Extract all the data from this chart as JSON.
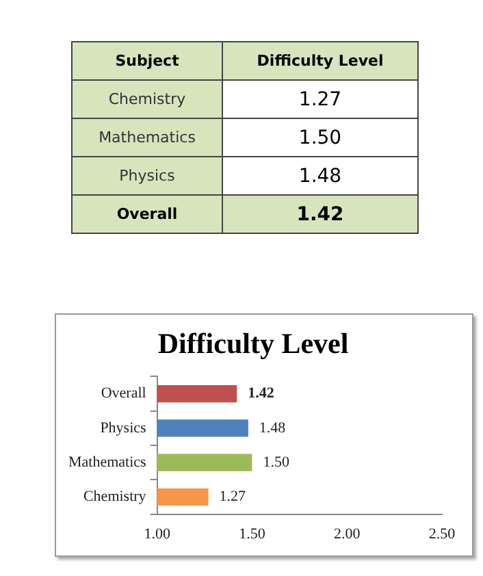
{
  "chart_data": {
    "type": "bar",
    "orientation": "horizontal",
    "title": "Difficulty Level",
    "categories": [
      "Overall",
      "Physics",
      "Mathematics",
      "Chemistry"
    ],
    "values": [
      1.42,
      1.48,
      1.5,
      1.27
    ],
    "colors": [
      "#c0504d",
      "#4f81bd",
      "#9bbb59",
      "#f79646"
    ],
    "value_labels": [
      "1.42",
      "1.48",
      "1.50",
      "1.27"
    ],
    "xlim": [
      1,
      2.5
    ],
    "xticks": [
      {
        "value": 1,
        "label": "1.00"
      },
      {
        "value": 1.5,
        "label": "1.50"
      },
      {
        "value": 2,
        "label": "2.00"
      },
      {
        "value": 2.5,
        "label": "2.50"
      }
    ],
    "grid": false,
    "legend": false,
    "annotations": [
      "Subject",
      "Difficulty Level"
    ]
  }
}
